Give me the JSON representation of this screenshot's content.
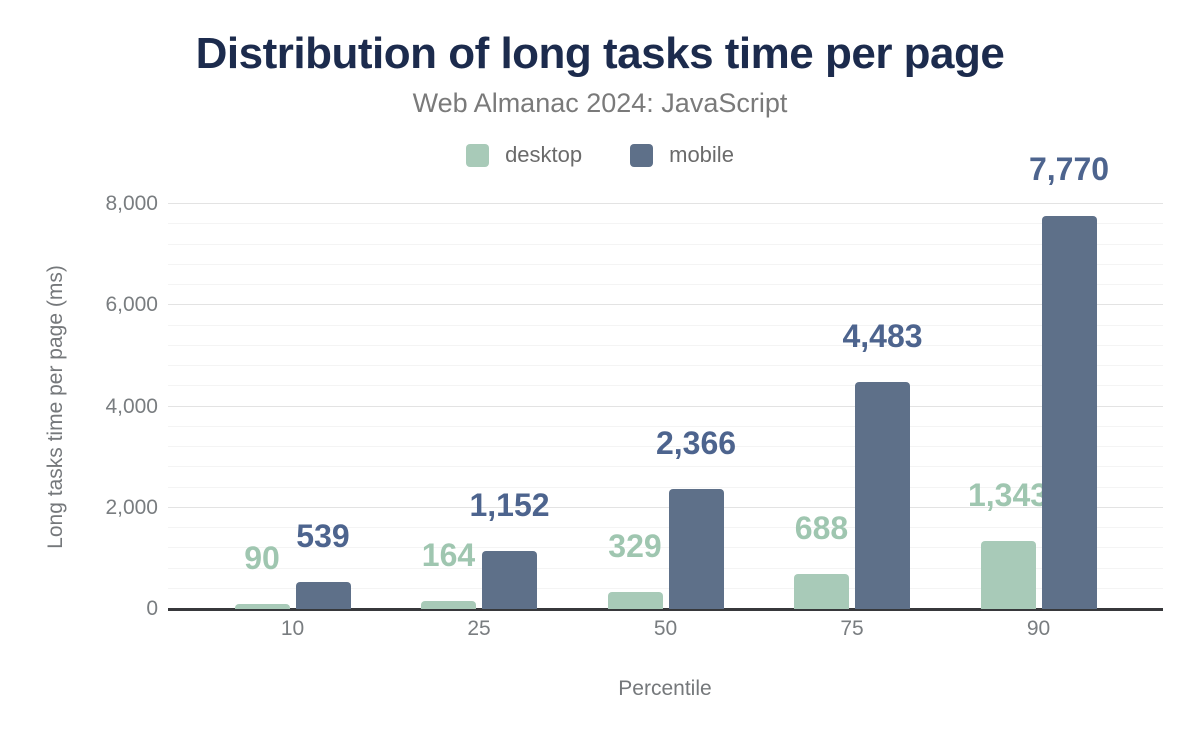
{
  "header": {
    "title": "Distribution of long tasks time per page",
    "subtitle": "Web Almanac 2024: JavaScript"
  },
  "legend": {
    "items": [
      {
        "label": "desktop",
        "color": "#a8cab8"
      },
      {
        "label": "mobile",
        "color": "#5e7089"
      }
    ]
  },
  "chart_data": {
    "type": "bar",
    "title": "Distribution of long tasks time per page",
    "subtitle": "Web Almanac 2024: JavaScript",
    "categories": [
      "10",
      "25",
      "50",
      "75",
      "90"
    ],
    "series": [
      {
        "name": "desktop",
        "color": "#a8cab8",
        "label_color": "#9fc6b0",
        "values": [
          90,
          164,
          329,
          688,
          1343
        ],
        "labels": [
          "90",
          "164",
          "329",
          "688",
          "1,343"
        ]
      },
      {
        "name": "mobile",
        "color": "#5e7089",
        "label_color": "#4d648e",
        "values": [
          539,
          1152,
          2366,
          4483,
          7770
        ],
        "labels": [
          "539",
          "1,152",
          "2,366",
          "4,483",
          "7,770"
        ]
      }
    ],
    "xlabel": "Percentile",
    "ylabel": "Long tasks time per page (ms)",
    "ylim": [
      0,
      8000
    ],
    "yticks": [
      0,
      2000,
      4000,
      6000,
      8000
    ],
    "ytick_labels": [
      "0",
      "2,000",
      "4,000",
      "6,000",
      "8,000"
    ],
    "minor_tick_interval": 400,
    "grid": true,
    "legend_position": "top"
  },
  "colors": {
    "title_text": "#1c2b4d",
    "subtitle_text": "#7a7a7a",
    "legend_text": "#6b6b6b",
    "tick_text": "#797d80",
    "axis_title_text": "#75787b",
    "axis_line": "#37383b",
    "major_grid": "#e3e3e3",
    "minor_grid": "#f4f4f4"
  }
}
